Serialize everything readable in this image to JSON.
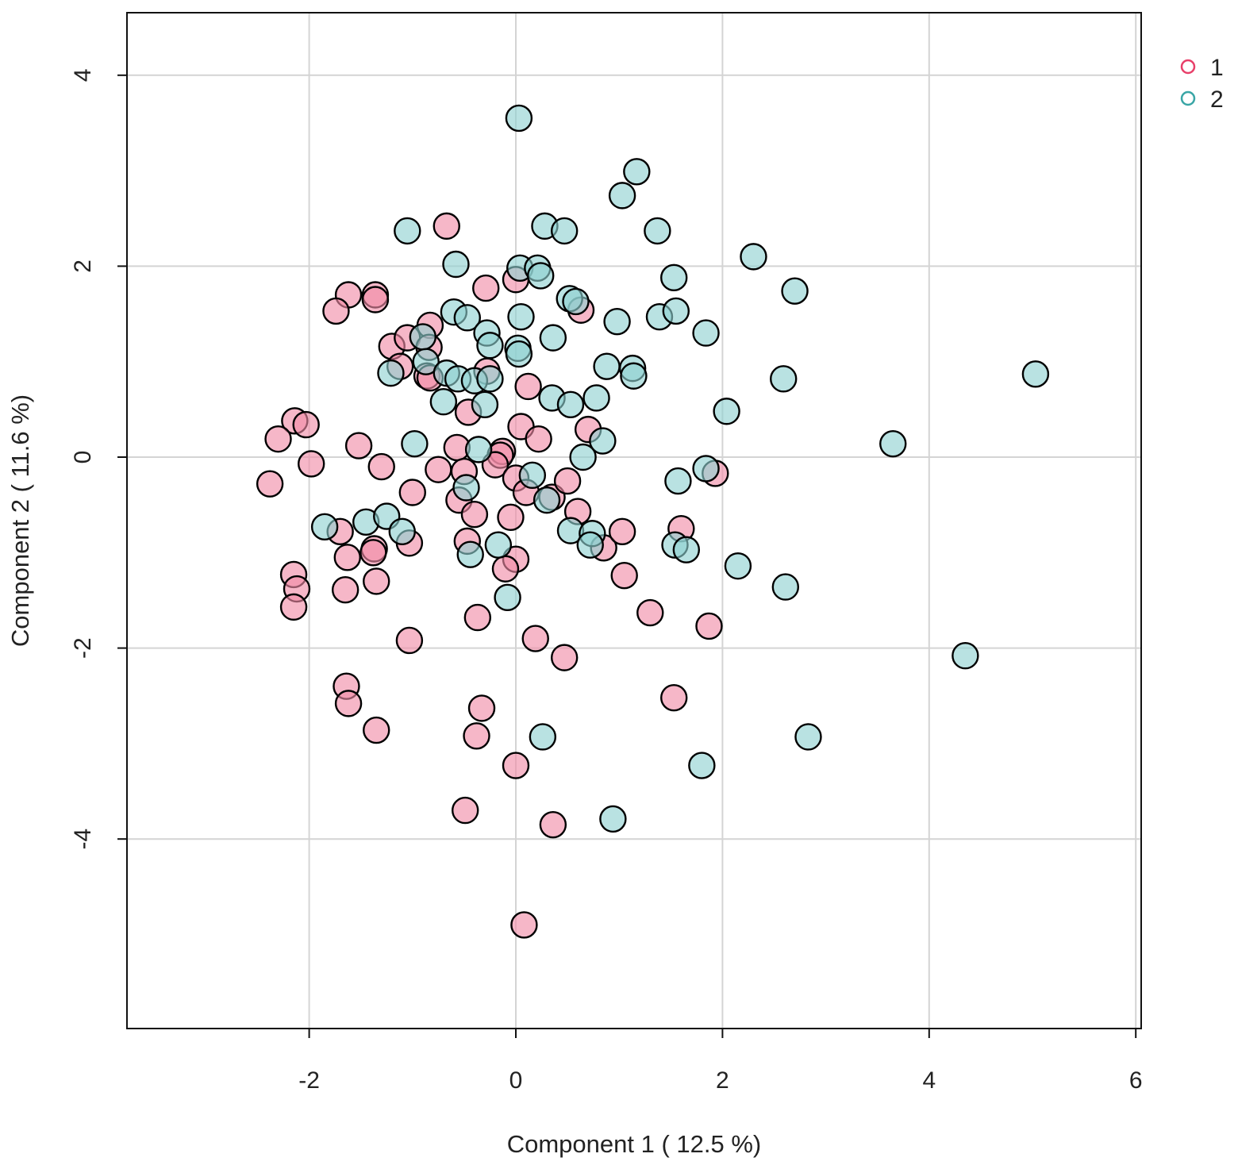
{
  "chart_data": {
    "type": "scatter",
    "xlabel": "Component 1 ( 12.5 %)",
    "ylabel": "Component 2 ( 11.6 %)",
    "xlim": [
      -3.9,
      6.0
    ],
    "ylim": [
      -6.0,
      4.65
    ],
    "xticks": [
      -2,
      0,
      2,
      4,
      6
    ],
    "yticks": [
      -4,
      -2,
      0,
      2,
      4
    ],
    "grid": true,
    "legend_position": "top-right",
    "series": [
      {
        "name": "1",
        "color": "#e8406a",
        "fill": "#f08aa6",
        "points": [
          [
            -0.67,
            2.42
          ],
          [
            -0.29,
            1.77
          ],
          [
            0.0,
            1.86
          ],
          [
            0.63,
            1.54
          ],
          [
            -1.62,
            1.7
          ],
          [
            -1.36,
            1.7
          ],
          [
            -1.36,
            1.65
          ],
          [
            -1.74,
            1.53
          ],
          [
            -1.2,
            1.16
          ],
          [
            -1.05,
            1.25
          ],
          [
            -0.83,
            1.38
          ],
          [
            -0.84,
            1.15
          ],
          [
            -1.12,
            0.95
          ],
          [
            -0.86,
            0.85
          ],
          [
            -0.83,
            0.83
          ],
          [
            -0.46,
            0.47
          ],
          [
            -0.28,
            0.9
          ],
          [
            0.12,
            0.74
          ],
          [
            -2.14,
            0.38
          ],
          [
            -2.3,
            0.19
          ],
          [
            -2.03,
            0.34
          ],
          [
            -1.52,
            0.12
          ],
          [
            -1.3,
            -0.1
          ],
          [
            -1.98,
            -0.07
          ],
          [
            -2.38,
            -0.28
          ],
          [
            0.05,
            0.32
          ],
          [
            0.22,
            0.19
          ],
          [
            0.7,
            0.29
          ],
          [
            -0.57,
            0.1
          ],
          [
            -0.13,
            0.06
          ],
          [
            -0.15,
            0.02
          ],
          [
            -0.2,
            -0.08
          ],
          [
            -0.75,
            -0.13
          ],
          [
            -0.5,
            -0.15
          ],
          [
            0.0,
            -0.22
          ],
          [
            0.1,
            -0.37
          ],
          [
            0.35,
            -0.42
          ],
          [
            0.5,
            -0.25
          ],
          [
            -1.0,
            -0.37
          ],
          [
            -0.55,
            -0.45
          ],
          [
            -0.4,
            -0.6
          ],
          [
            -0.05,
            -0.63
          ],
          [
            0.6,
            -0.57
          ],
          [
            -1.7,
            -0.78
          ],
          [
            -1.63,
            -1.05
          ],
          [
            -1.37,
            -0.96
          ],
          [
            -1.38,
            -1.0
          ],
          [
            -1.03,
            -0.9
          ],
          [
            -0.47,
            -0.88
          ],
          [
            0.0,
            -1.07
          ],
          [
            -0.1,
            -1.17
          ],
          [
            0.85,
            -0.95
          ],
          [
            1.03,
            -0.78
          ],
          [
            1.6,
            -0.75
          ],
          [
            -2.15,
            -1.23
          ],
          [
            -2.12,
            -1.38
          ],
          [
            -2.15,
            -1.57
          ],
          [
            -1.65,
            -1.39
          ],
          [
            -1.35,
            -1.3
          ],
          [
            1.05,
            -1.24
          ],
          [
            -0.37,
            -1.68
          ],
          [
            1.3,
            -1.63
          ],
          [
            1.87,
            -1.77
          ],
          [
            -1.03,
            -1.92
          ],
          [
            0.19,
            -1.9
          ],
          [
            0.47,
            -2.1
          ],
          [
            -1.64,
            -2.4
          ],
          [
            -1.62,
            -2.58
          ],
          [
            -0.33,
            -2.63
          ],
          [
            1.53,
            -2.52
          ],
          [
            -1.35,
            -2.86
          ],
          [
            -0.38,
            -2.92
          ],
          [
            0.0,
            -3.23
          ],
          [
            -0.49,
            -3.7
          ],
          [
            0.36,
            -3.85
          ],
          [
            0.08,
            -4.9
          ],
          [
            1.93,
            -0.17
          ]
        ]
      },
      {
        "name": "2",
        "color": "#3aa6a6",
        "fill": "#8ed0d0",
        "points": [
          [
            0.03,
            3.55
          ],
          [
            1.17,
            2.99
          ],
          [
            1.03,
            2.74
          ],
          [
            0.28,
            2.42
          ],
          [
            0.47,
            2.37
          ],
          [
            -1.05,
            2.37
          ],
          [
            1.37,
            2.37
          ],
          [
            2.3,
            2.1
          ],
          [
            -0.58,
            2.02
          ],
          [
            0.04,
            1.98
          ],
          [
            0.21,
            1.98
          ],
          [
            0.24,
            1.9
          ],
          [
            1.53,
            1.88
          ],
          [
            2.7,
            1.74
          ],
          [
            0.52,
            1.66
          ],
          [
            0.58,
            1.63
          ],
          [
            -0.6,
            1.52
          ],
          [
            -0.47,
            1.46
          ],
          [
            0.05,
            1.47
          ],
          [
            1.39,
            1.47
          ],
          [
            1.55,
            1.53
          ],
          [
            0.98,
            1.42
          ],
          [
            1.84,
            1.3
          ],
          [
            -0.28,
            1.3
          ],
          [
            -0.25,
            1.17
          ],
          [
            0.02,
            1.14
          ],
          [
            0.03,
            1.08
          ],
          [
            0.36,
            1.25
          ],
          [
            -0.9,
            1.26
          ],
          [
            -0.87,
            1.0
          ],
          [
            -0.67,
            0.88
          ],
          [
            -0.56,
            0.82
          ],
          [
            -0.4,
            0.8
          ],
          [
            -0.25,
            0.82
          ],
          [
            -1.21,
            0.88
          ],
          [
            0.88,
            0.95
          ],
          [
            1.13,
            0.93
          ],
          [
            1.14,
            0.85
          ],
          [
            2.59,
            0.82
          ],
          [
            5.03,
            0.87
          ],
          [
            0.35,
            0.62
          ],
          [
            0.78,
            0.62
          ],
          [
            -0.7,
            0.58
          ],
          [
            -0.3,
            0.55
          ],
          [
            0.53,
            0.55
          ],
          [
            2.04,
            0.48
          ],
          [
            3.65,
            0.14
          ],
          [
            -0.98,
            0.14
          ],
          [
            -0.36,
            0.08
          ],
          [
            0.84,
            0.17
          ],
          [
            0.65,
            0.0
          ],
          [
            0.16,
            -0.19
          ],
          [
            1.57,
            -0.25
          ],
          [
            1.84,
            -0.12
          ],
          [
            -0.48,
            -0.32
          ],
          [
            0.3,
            -0.45
          ],
          [
            -1.85,
            -0.73
          ],
          [
            -1.45,
            -0.68
          ],
          [
            -1.25,
            -0.62
          ],
          [
            -1.1,
            -0.78
          ],
          [
            0.53,
            -0.77
          ],
          [
            0.74,
            -0.8
          ],
          [
            0.72,
            -0.92
          ],
          [
            1.54,
            -0.92
          ],
          [
            1.65,
            -0.97
          ],
          [
            -0.17,
            -0.92
          ],
          [
            -0.44,
            -1.02
          ],
          [
            2.15,
            -1.14
          ],
          [
            2.61,
            -1.36
          ],
          [
            -0.08,
            -1.47
          ],
          [
            4.35,
            -2.08
          ],
          [
            0.26,
            -2.93
          ],
          [
            2.83,
            -2.93
          ],
          [
            1.8,
            -3.23
          ],
          [
            0.94,
            -3.79
          ]
        ]
      }
    ]
  }
}
